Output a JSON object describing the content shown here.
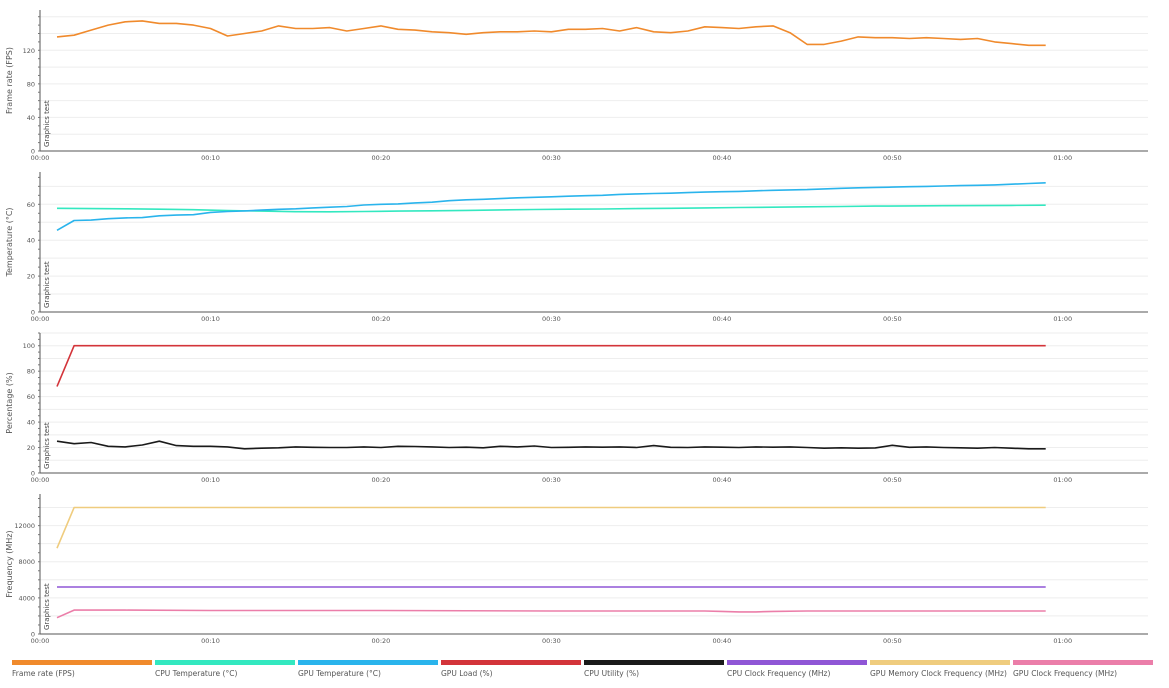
{
  "legend": [
    {
      "label": "Frame rate (FPS)",
      "color": "#f08a2c"
    },
    {
      "label": "CPU Temperature (°C)",
      "color": "#33e8c0"
    },
    {
      "label": "GPU Temperature (°C)",
      "color": "#2ab4ec"
    },
    {
      "label": "GPU Load (%)",
      "color": "#d3343a"
    },
    {
      "label": "CPU Utility (%)",
      "color": "#1a1a1a"
    },
    {
      "label": "CPU Clock Frequency (MHz)",
      "color": "#8f56d6"
    },
    {
      "label": "GPU Memory Clock Frequency (MHz)",
      "color": "#efcc7e"
    },
    {
      "label": "GPU Clock Frequency (MHz)",
      "color": "#eb7ea9"
    }
  ],
  "chart_data": [
    {
      "type": "line",
      "ylabel": "Frame rate (FPS)",
      "annotation": "Graphics test",
      "x_unit": "seconds",
      "x_ticks": [
        "00:00",
        "00:10",
        "00:20",
        "00:30",
        "00:40",
        "00:50",
        "01:00"
      ],
      "xlim": [
        0,
        65
      ],
      "ylim": [
        0,
        168
      ],
      "y_ticks": [
        0,
        40,
        80,
        120
      ],
      "grid": true,
      "series": [
        {
          "name": "Frame rate (FPS)",
          "color": "#f08a2c",
          "x": [
            1,
            2,
            3,
            4,
            5,
            6,
            7,
            8,
            9,
            10,
            11,
            12,
            13,
            14,
            15,
            16,
            17,
            18,
            19,
            20,
            21,
            22,
            23,
            24,
            25,
            26,
            27,
            28,
            29,
            30,
            31,
            32,
            33,
            34,
            35,
            36,
            37,
            38,
            39,
            40,
            41,
            42,
            43,
            44,
            45,
            46,
            47,
            48,
            49,
            50,
            51,
            52,
            53,
            54,
            55,
            56,
            57,
            58,
            59
          ],
          "values": [
            136,
            138,
            144,
            150,
            154,
            155,
            152,
            152,
            150,
            146,
            137,
            140,
            143,
            149,
            146,
            146,
            147,
            143,
            146,
            149,
            145,
            144,
            142,
            141,
            139,
            141,
            142,
            142,
            143,
            142,
            145,
            145,
            146,
            143,
            147,
            142,
            141,
            143,
            148,
            147,
            146,
            148,
            149,
            141,
            127,
            127,
            131,
            136,
            135,
            135,
            134,
            135,
            134,
            133,
            134,
            130,
            128,
            126,
            126
          ]
        }
      ]
    },
    {
      "type": "line",
      "ylabel": "Temperature (°C)",
      "annotation": "Graphics test",
      "x_unit": "seconds",
      "x_ticks": [
        "00:00",
        "00:10",
        "00:20",
        "00:30",
        "00:40",
        "00:50",
        "01:00"
      ],
      "xlim": [
        0,
        65
      ],
      "ylim": [
        0,
        78
      ],
      "y_ticks": [
        0,
        20,
        40,
        60
      ],
      "grid": true,
      "series": [
        {
          "name": "CPU Temperature (°C)",
          "color": "#33e8c0",
          "x": [
            1,
            3,
            5,
            7,
            9,
            11,
            13,
            15,
            17,
            19,
            21,
            23,
            25,
            27,
            29,
            31,
            33,
            35,
            37,
            39,
            41,
            43,
            45,
            47,
            49,
            51,
            53,
            55,
            57,
            59
          ],
          "values": [
            57.8,
            57.6,
            57.5,
            57.3,
            57.0,
            56.5,
            56.2,
            55.9,
            55.8,
            56.0,
            56.2,
            56.4,
            56.6,
            56.9,
            57.1,
            57.3,
            57.4,
            57.6,
            57.8,
            58.0,
            58.2,
            58.4,
            58.6,
            58.8,
            59.0,
            59.1,
            59.2,
            59.3,
            59.4,
            59.5
          ]
        },
        {
          "name": "GPU Temperature (°C)",
          "color": "#2ab4ec",
          "x": [
            1,
            2,
            3,
            4,
            5,
            6,
            7,
            8,
            9,
            10,
            11,
            12,
            13,
            14,
            15,
            16,
            17,
            18,
            19,
            20,
            21,
            22,
            23,
            24,
            25,
            26,
            27,
            28,
            29,
            30,
            31,
            32,
            33,
            34,
            35,
            36,
            37,
            38,
            39,
            40,
            41,
            42,
            43,
            44,
            45,
            46,
            47,
            48,
            49,
            50,
            51,
            52,
            53,
            54,
            55,
            56,
            57,
            58,
            59
          ],
          "values": [
            45.5,
            51.0,
            51.2,
            52.0,
            52.4,
            52.6,
            53.6,
            54.0,
            54.2,
            55.5,
            56.0,
            56.3,
            56.8,
            57.2,
            57.5,
            58.0,
            58.4,
            58.8,
            59.6,
            60.0,
            60.2,
            60.8,
            61.2,
            62.0,
            62.5,
            62.8,
            63.2,
            63.6,
            63.9,
            64.2,
            64.5,
            64.8,
            65.0,
            65.5,
            65.8,
            66.0,
            66.2,
            66.5,
            66.8,
            67.0,
            67.2,
            67.5,
            67.8,
            68.0,
            68.2,
            68.6,
            68.9,
            69.2,
            69.4,
            69.6,
            69.8,
            70.0,
            70.2,
            70.4,
            70.6,
            70.8,
            71.2,
            71.6,
            72.0
          ]
        }
      ]
    },
    {
      "type": "line",
      "ylabel": "Percentage (%)",
      "annotation": "Graphics test",
      "x_unit": "seconds",
      "x_ticks": [
        "00:00",
        "00:10",
        "00:20",
        "00:30",
        "00:40",
        "00:50",
        "01:00"
      ],
      "xlim": [
        0,
        65
      ],
      "ylim": [
        0,
        110
      ],
      "y_ticks": [
        0,
        20,
        40,
        60,
        80,
        100
      ],
      "grid": true,
      "series": [
        {
          "name": "GPU Load (%)",
          "color": "#d3343a",
          "x": [
            1,
            2,
            59
          ],
          "values": [
            68,
            100,
            100
          ]
        },
        {
          "name": "CPU Utility (%)",
          "color": "#1a1a1a",
          "x": [
            1,
            2,
            3,
            4,
            5,
            6,
            7,
            8,
            9,
            10,
            11,
            12,
            13,
            14,
            15,
            16,
            17,
            18,
            19,
            20,
            21,
            22,
            23,
            24,
            25,
            26,
            27,
            28,
            29,
            30,
            31,
            32,
            33,
            34,
            35,
            36,
            37,
            38,
            39,
            40,
            41,
            42,
            43,
            44,
            45,
            46,
            47,
            48,
            49,
            50,
            51,
            52,
            53,
            54,
            55,
            56,
            57,
            58,
            59
          ],
          "values": [
            25,
            23,
            24,
            21,
            20.5,
            22,
            25,
            21.5,
            21,
            21,
            20.5,
            19,
            19.5,
            19.8,
            20.5,
            20.2,
            20,
            20,
            20.5,
            20,
            21,
            20.8,
            20.5,
            20,
            20.3,
            19.8,
            21,
            20.5,
            21.2,
            20,
            20.2,
            20.5,
            20.3,
            20.5,
            20,
            21.5,
            20.2,
            20,
            20.5,
            20.3,
            20,
            20.5,
            20.3,
            20.5,
            20,
            19.5,
            19.8,
            19.5,
            19.7,
            21.8,
            20.2,
            20.5,
            20,
            19.8,
            19.5,
            20,
            19.5,
            19,
            19
          ]
        }
      ]
    },
    {
      "type": "line",
      "ylabel": "Frequency (MHz)",
      "annotation": "Graphics test",
      "x_unit": "seconds",
      "x_ticks": [
        "00:00",
        "00:10",
        "00:20",
        "00:30",
        "00:40",
        "00:50",
        "01:00"
      ],
      "xlim": [
        0,
        65
      ],
      "ylim": [
        0,
        15500
      ],
      "y_ticks": [
        0,
        4000,
        8000,
        12000
      ],
      "grid": true,
      "series": [
        {
          "name": "GPU Memory Clock Frequency (MHz)",
          "color": "#efcc7e",
          "x": [
            1,
            2,
            59
          ],
          "values": [
            9500,
            14000,
            14000
          ]
        },
        {
          "name": "CPU Clock Frequency (MHz)",
          "color": "#8f56d6",
          "x": [
            1,
            59
          ],
          "values": [
            5200,
            5200
          ]
        },
        {
          "name": "GPU Clock Frequency (MHz)",
          "color": "#eb7ea9",
          "x": [
            1,
            2,
            5,
            10,
            20,
            30,
            39,
            40,
            41,
            42,
            43,
            45,
            50,
            55,
            59
          ],
          "values": [
            1800,
            2650,
            2650,
            2600,
            2600,
            2550,
            2550,
            2500,
            2450,
            2450,
            2500,
            2550,
            2550,
            2550,
            2550
          ]
        }
      ]
    }
  ]
}
